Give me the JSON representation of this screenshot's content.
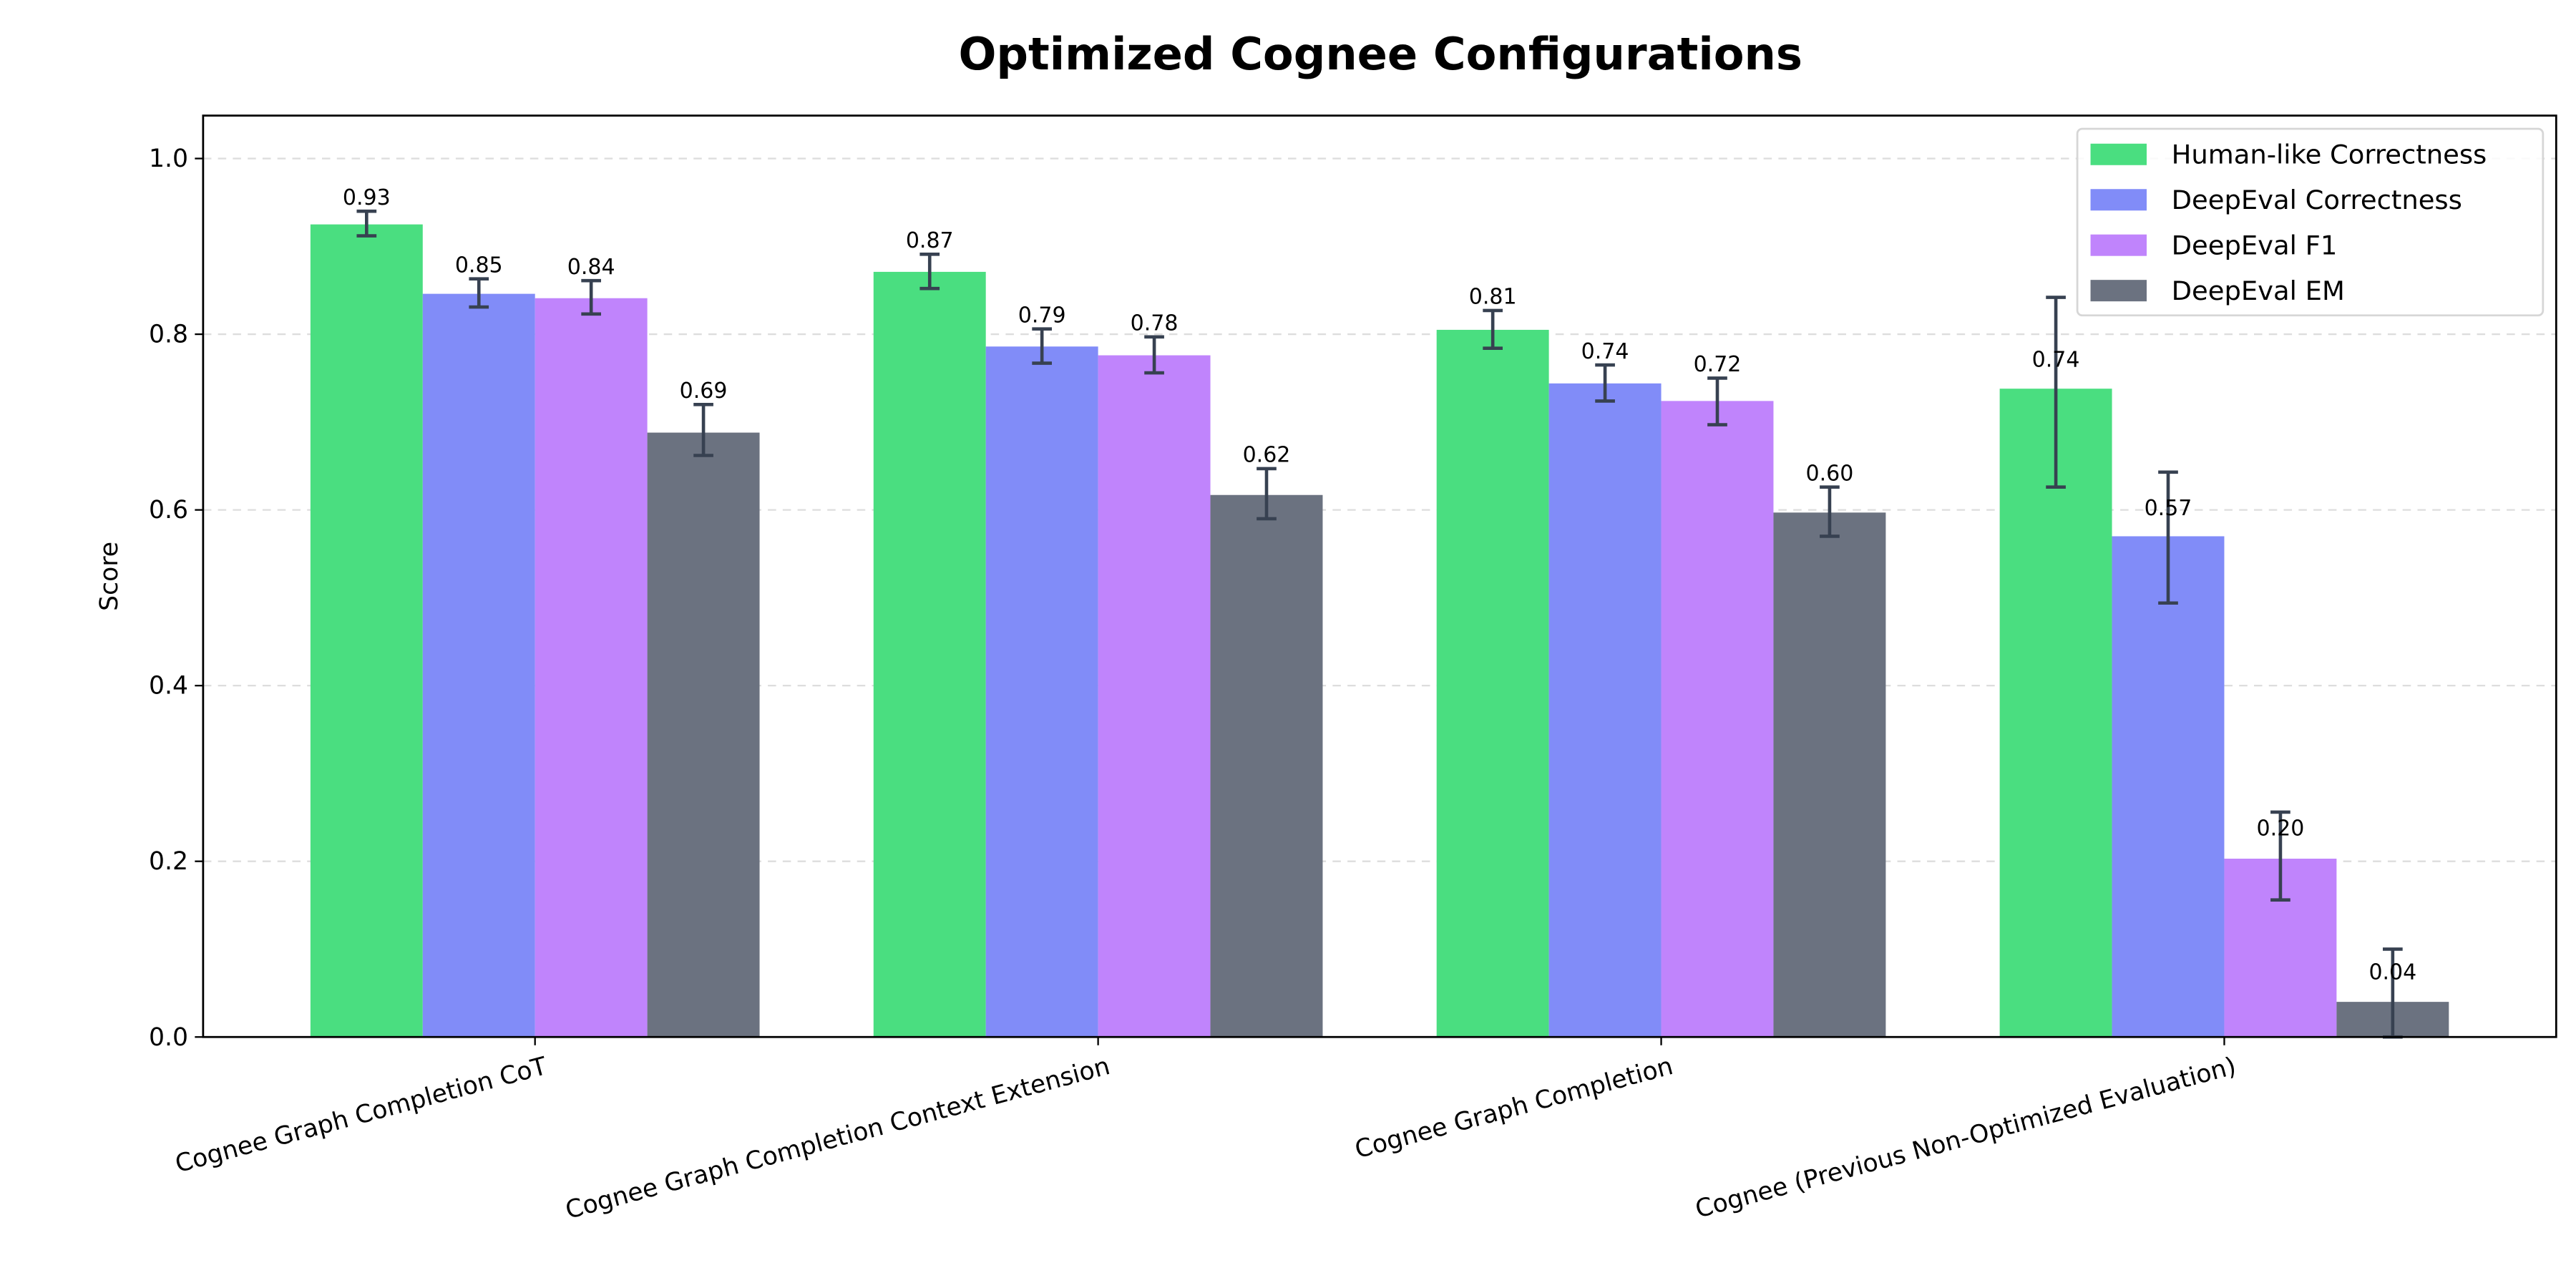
{
  "chart_data": {
    "type": "bar",
    "title": "Optimized Cognee Configurations",
    "xlabel": "",
    "ylabel": "Score",
    "ylim": [
      0,
      1.05
    ],
    "yticks": [
      "0.0",
      "0.2",
      "0.4",
      "0.6",
      "0.8",
      "1.0"
    ],
    "grid": "y dashed",
    "legend_position": "top-right",
    "categories": [
      "Cognee Graph Completion CoT",
      "Cognee Graph Completion Context Extension",
      "Cognee Graph Completion",
      "Cognee (Previous Non-Optimized Evaluation)"
    ],
    "series": [
      {
        "name": "Human-like Correctness",
        "color": "#4ade80",
        "values": [
          0.925,
          0.871,
          0.805,
          0.738
        ],
        "labels": [
          "0.93",
          "0.87",
          "0.81",
          "0.74"
        ],
        "error_range": [
          [
            0.912,
            0.94
          ],
          [
            0.852,
            0.891
          ],
          [
            0.784,
            0.827
          ],
          [
            0.626,
            0.842
          ]
        ]
      },
      {
        "name": "DeepEval Correctness",
        "color": "#818cf8",
        "values": [
          0.846,
          0.786,
          0.744,
          0.57
        ],
        "labels": [
          "0.85",
          "0.79",
          "0.74",
          "0.57"
        ],
        "error_range": [
          [
            0.831,
            0.863
          ],
          [
            0.767,
            0.806
          ],
          [
            0.724,
            0.765
          ],
          [
            0.494,
            0.643
          ]
        ]
      },
      {
        "name": "DeepEval F1",
        "color": "#c084fc",
        "values": [
          0.841,
          0.776,
          0.724,
          0.203
        ],
        "labels": [
          "0.84",
          "0.78",
          "0.72",
          "0.20"
        ],
        "error_range": [
          [
            0.823,
            0.861
          ],
          [
            0.756,
            0.797
          ],
          [
            0.697,
            0.75
          ],
          [
            0.156,
            0.256
          ]
        ]
      },
      {
        "name": "DeepEval EM",
        "color": "#6b7280",
        "values": [
          0.688,
          0.617,
          0.597,
          0.04
        ],
        "labels": [
          "0.69",
          "0.62",
          "0.60",
          "0.04"
        ],
        "error_range": [
          [
            0.662,
            0.72
          ],
          [
            0.59,
            0.647
          ],
          [
            0.57,
            0.626
          ],
          [
            0.0,
            0.1
          ]
        ]
      }
    ],
    "error_bar_color": "#374151"
  }
}
